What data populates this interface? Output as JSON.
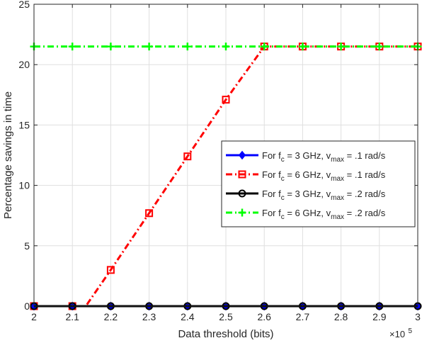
{
  "chart_data": {
    "type": "line",
    "title": "",
    "xlabel": "Data threshold (bits)",
    "ylabel": "Percentage savings in time",
    "x_exponent": "×10",
    "x_exponent_power": "5",
    "x_tick_labels": [
      "2",
      "2.1",
      "2.2",
      "2.3",
      "2.4",
      "2.5",
      "2.6",
      "2.7",
      "2.8",
      "2.9",
      "3"
    ],
    "y_tick_labels": [
      "0",
      "5",
      "10",
      "15",
      "20",
      "25"
    ],
    "xlim": [
      200000,
      300000
    ],
    "ylim": [
      0,
      25
    ],
    "x_ticks": [
      200000,
      210000,
      220000,
      230000,
      240000,
      250000,
      260000,
      270000,
      280000,
      290000,
      300000
    ],
    "y_ticks": [
      0,
      5,
      10,
      15,
      20,
      25
    ],
    "grid": true,
    "legend_position": "center-right",
    "series": [
      {
        "legend_pre": "For f",
        "legend_sub1": "c",
        "legend_mid": " = 3 GHz, v",
        "legend_sub2": "max",
        "legend_post": " = .1 rad/s",
        "color": "#0000ff",
        "line_style": "solid",
        "marker": "diamond",
        "x": [
          200000,
          210000,
          220000,
          230000,
          240000,
          250000,
          260000,
          270000,
          280000,
          290000,
          300000
        ],
        "y": [
          0,
          0,
          0,
          0,
          0,
          0,
          0,
          0,
          0,
          0,
          0
        ]
      },
      {
        "legend_pre": "For f",
        "legend_sub1": "c",
        "legend_mid": " = 6 GHz, v",
        "legend_sub2": "max",
        "legend_post": " = .1 rad/s",
        "color": "#ff0000",
        "line_style": "dash-dot",
        "marker": "square",
        "x": [
          200000,
          210000,
          220000,
          230000,
          240000,
          250000,
          260000,
          270000,
          280000,
          290000,
          300000
        ],
        "y": [
          0,
          0,
          3.0,
          7.7,
          12.4,
          17.1,
          21.5,
          21.5,
          21.5,
          21.5,
          21.5
        ],
        "line_points": [
          [
            200000,
            0
          ],
          [
            210000,
            0
          ],
          [
            213500,
            0
          ],
          [
            220000,
            3.0
          ],
          [
            230000,
            7.7
          ],
          [
            240000,
            12.4
          ],
          [
            250000,
            17.1
          ],
          [
            260000,
            21.5
          ],
          [
            270000,
            21.5
          ],
          [
            280000,
            21.5
          ],
          [
            290000,
            21.5
          ],
          [
            300000,
            21.5
          ]
        ]
      },
      {
        "legend_pre": "For f",
        "legend_sub1": "c",
        "legend_mid": " = 3 GHz, v",
        "legend_sub2": "max",
        "legend_post": " = .2 rad/s",
        "color": "#000000",
        "line_style": "solid",
        "marker": "circle",
        "x": [
          200000,
          210000,
          220000,
          230000,
          240000,
          250000,
          260000,
          270000,
          280000,
          290000,
          300000
        ],
        "y": [
          0,
          0,
          0,
          0,
          0,
          0,
          0,
          0,
          0,
          0,
          0
        ]
      },
      {
        "legend_pre": "For f",
        "legend_sub1": "c",
        "legend_mid": " = 6 GHz, v",
        "legend_sub2": "max",
        "legend_post": " = .2 rad/s",
        "color": "#00ff00",
        "line_style": "dash-dot",
        "marker": "plus",
        "x": [
          200000,
          210000,
          220000,
          230000,
          240000,
          250000,
          260000,
          270000,
          280000,
          290000,
          300000
        ],
        "y": [
          21.5,
          21.5,
          21.5,
          21.5,
          21.5,
          21.5,
          21.5,
          21.5,
          21.5,
          21.5,
          21.5
        ]
      }
    ]
  }
}
